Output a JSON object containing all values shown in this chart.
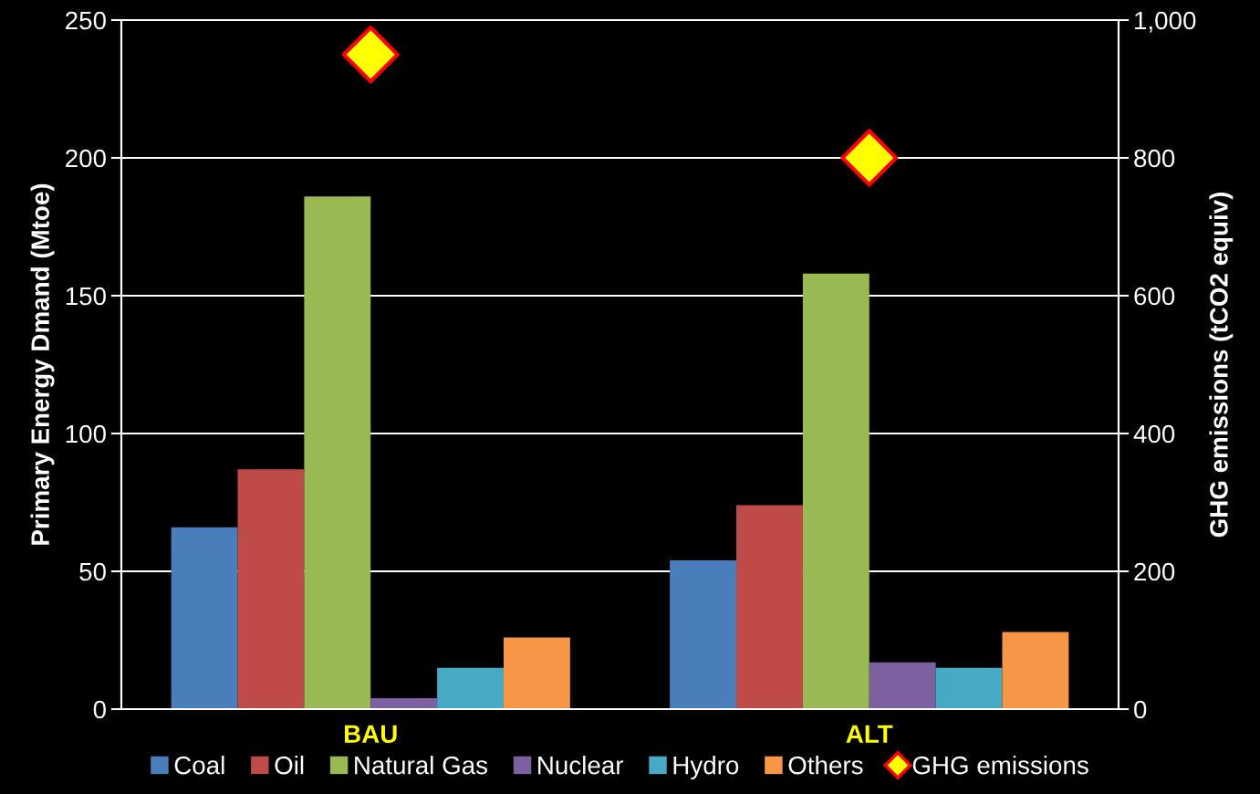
{
  "chart_data": {
    "type": "bar",
    "ylabel": "Primary Energy Dmand (Mtoe)",
    "y2label": "GHG emissions (tCO2 equiv)",
    "categories": [
      "BAU",
      "ALT"
    ],
    "series": [
      {
        "name": "Coal",
        "color": "#4a7ebb",
        "values": [
          66,
          54
        ]
      },
      {
        "name": "Oil",
        "color": "#be4b48",
        "values": [
          87,
          74
        ]
      },
      {
        "name": "Natural Gas",
        "color": "#98b954",
        "values": [
          186,
          158
        ]
      },
      {
        "name": "Nuclear",
        "color": "#7d60a0",
        "values": [
          4,
          17
        ]
      },
      {
        "name": "Hydro",
        "color": "#46aac5",
        "values": [
          15,
          15
        ]
      },
      {
        "name": "Others",
        "color": "#f79646",
        "values": [
          26,
          28
        ]
      },
      {
        "name": "GHG emissions",
        "type": "scatter",
        "axis": "y2",
        "marker": "diamond",
        "color": "#ffff00",
        "x": [
          "BAU",
          "ALT"
        ],
        "values": [
          950,
          800
        ]
      }
    ],
    "ylim": [
      0,
      250
    ],
    "yticks": [
      0,
      50,
      100,
      150,
      200,
      250
    ],
    "y2lim": [
      0,
      1000
    ],
    "y2ticks": [
      {
        "value": 0,
        "label": "0"
      },
      {
        "value": 200,
        "label": "200"
      },
      {
        "value": 400,
        "label": "400"
      },
      {
        "value": 600,
        "label": "600"
      },
      {
        "value": 800,
        "label": "800"
      },
      {
        "value": 1000,
        "label": "1,000"
      }
    ],
    "grid": "y",
    "legend": "bottom"
  }
}
